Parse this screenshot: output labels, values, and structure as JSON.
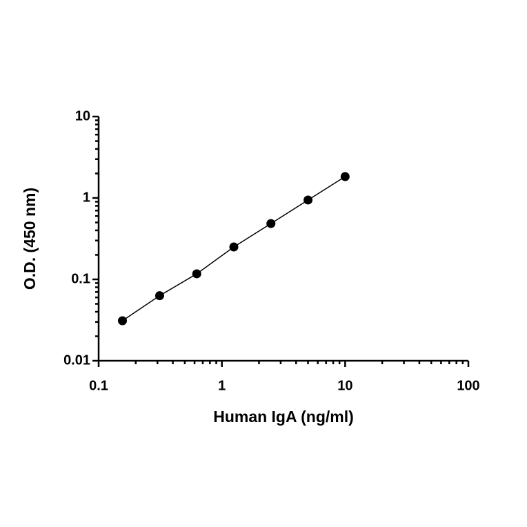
{
  "chart_data": {
    "type": "scatter",
    "x": [
      0.156,
      0.3125,
      0.625,
      1.25,
      2.5,
      5,
      10
    ],
    "series": [
      {
        "color": "#000000",
        "values": [
          0.031,
          0.063,
          0.117,
          0.25,
          0.485,
          0.944,
          1.83
        ]
      }
    ],
    "line": true,
    "log_x": true,
    "log_y": true,
    "xlim": [
      0.1,
      100
    ],
    "ylim": [
      0.01,
      10
    ],
    "xticks": [
      0.1,
      1,
      10,
      100
    ],
    "yticks": [
      0.01,
      0.1,
      1,
      10
    ],
    "xlabel": "Human IgA (ng/ml)",
    "ylabel": "O.D. (450 nm)"
  }
}
